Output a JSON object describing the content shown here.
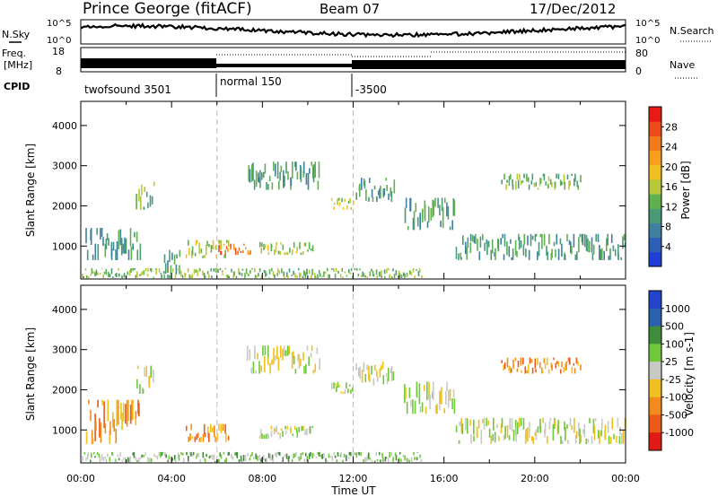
{
  "header": {
    "station": "Prince George (fitACF)",
    "beam": "Beam 07",
    "date": "17/Dec/2012"
  },
  "top_panels": {
    "nsky_label": "N.Sky",
    "nsky_ticks": [
      "10^5",
      "10^0"
    ],
    "nsearch_label": "N.Search",
    "nsearch_ticks": [
      "10^5",
      "10^0"
    ],
    "freq_label": "Freq.",
    "freq_unit": "[MHz]",
    "freq_ticks": [
      "18",
      "8"
    ],
    "nave_label": "Nave",
    "nave_ticks": [
      "80",
      "0"
    ],
    "cpid_label": "CPID",
    "cpid_segments": [
      {
        "label": "twofsound 3501",
        "start": 0,
        "end": 6
      },
      {
        "label": "normal 150",
        "start": 6,
        "end": 12
      },
      {
        "label": "-3500",
        "start": 12,
        "end": 24
      }
    ]
  },
  "chart_data": [
    {
      "type": "heatmap",
      "title": "",
      "xlabel": "Time UT",
      "ylabel": "Slant Range [km]",
      "xlim": [
        0,
        24
      ],
      "ylim": [
        180,
        4600
      ],
      "x_ticks": [
        "00:00",
        "04:00",
        "08:00",
        "12:00",
        "16:00",
        "20:00",
        "00:00"
      ],
      "y_ticks": [
        "1000",
        "2000",
        "3000",
        "4000"
      ],
      "colorbar_label": "Power [dB]",
      "colorbar_ticks": [
        "4",
        "8",
        "12",
        "16",
        "20",
        "24",
        "28"
      ],
      "colorbar_range": [
        0,
        30
      ],
      "colorbar_colors": [
        "#1f3fd8",
        "#2b5fb8",
        "#3f7f9f",
        "#4a9a78",
        "#5fb04e",
        "#b8c83a",
        "#f0c020",
        "#f7a01e",
        "#f47a1e",
        "#ee4a1a",
        "#e81a14"
      ],
      "echo_regions": [
        {
          "t0": 0.2,
          "t1": 2.6,
          "r0": 650,
          "r1": 1450,
          "p": 10
        },
        {
          "t0": 2.4,
          "t1": 3.2,
          "r0": 1900,
          "r1": 2600,
          "p": 12
        },
        {
          "t0": 3.6,
          "t1": 4.4,
          "r0": 300,
          "r1": 900,
          "p": 10
        },
        {
          "t0": 4.6,
          "t1": 6.5,
          "r0": 700,
          "r1": 1150,
          "p": 14
        },
        {
          "t0": 6.0,
          "t1": 7.5,
          "r0": 780,
          "r1": 1060,
          "p": 24
        },
        {
          "t0": 7.3,
          "t1": 10.5,
          "r0": 2400,
          "r1": 3100,
          "p": 8
        },
        {
          "t0": 7.8,
          "t1": 10.2,
          "r0": 780,
          "r1": 1100,
          "p": 14
        },
        {
          "t0": 11.0,
          "t1": 12.0,
          "r0": 1900,
          "r1": 2200,
          "p": 16
        },
        {
          "t0": 12.1,
          "t1": 13.8,
          "r0": 2100,
          "r1": 2700,
          "p": 10
        },
        {
          "t0": 0.0,
          "t1": 15.0,
          "r0": 200,
          "r1": 450,
          "p": 12
        },
        {
          "t0": 14.2,
          "t1": 16.5,
          "r0": 1400,
          "r1": 2200,
          "p": 8
        },
        {
          "t0": 16.5,
          "t1": 24.0,
          "r0": 650,
          "r1": 1300,
          "p": 10
        },
        {
          "t0": 18.5,
          "t1": 22.0,
          "r0": 2400,
          "r1": 2800,
          "p": 12
        }
      ]
    },
    {
      "type": "heatmap",
      "title": "",
      "xlabel": "Time UT",
      "ylabel": "Slant Range [km]",
      "xlim": [
        0,
        24
      ],
      "ylim": [
        180,
        4600
      ],
      "x_ticks": [
        "00:00",
        "04:00",
        "08:00",
        "12:00",
        "16:00",
        "20:00",
        "00:00"
      ],
      "y_ticks": [
        "1000",
        "2000",
        "3000",
        "4000"
      ],
      "colorbar_label": "Velocity [m s-1]",
      "colorbar_ticks": [
        "1000",
        "500",
        "100",
        "25",
        "-25",
        "-100",
        "-500",
        "-1000"
      ],
      "colorbar_colors": [
        "#2244cc",
        "#2a62b0",
        "#3f8c3a",
        "#6fc83a",
        "#c8c8c4",
        "#f0c020",
        "#f48a1c",
        "#ec5a18",
        "#e01a14"
      ],
      "echo_regions": [
        {
          "t0": 0.2,
          "t1": 2.6,
          "r0": 650,
          "r1": 1750,
          "v": -300
        },
        {
          "t0": 2.4,
          "t1": 3.2,
          "r0": 1900,
          "r1": 2600,
          "v": 0
        },
        {
          "t0": 4.6,
          "t1": 6.5,
          "r0": 700,
          "r1": 1150,
          "v": -150
        },
        {
          "t0": 7.3,
          "t1": 10.5,
          "r0": 2400,
          "r1": 3100,
          "v": 0
        },
        {
          "t0": 7.8,
          "t1": 10.2,
          "r0": 780,
          "r1": 1100,
          "v": 0
        },
        {
          "t0": 0.0,
          "t1": 15.0,
          "r0": 200,
          "r1": 450,
          "v": 60
        },
        {
          "t0": 11.0,
          "t1": 12.0,
          "r0": 1900,
          "r1": 2200,
          "v": 0
        },
        {
          "t0": 12.1,
          "t1": 13.8,
          "r0": 2100,
          "r1": 2700,
          "v": 0
        },
        {
          "t0": 14.2,
          "t1": 16.5,
          "r0": 1400,
          "r1": 2200,
          "v": 0
        },
        {
          "t0": 16.5,
          "t1": 24.0,
          "r0": 650,
          "r1": 1300,
          "v": 0
        },
        {
          "t0": 18.5,
          "t1": 22.0,
          "r0": 2400,
          "r1": 2800,
          "v": -400
        }
      ]
    }
  ]
}
